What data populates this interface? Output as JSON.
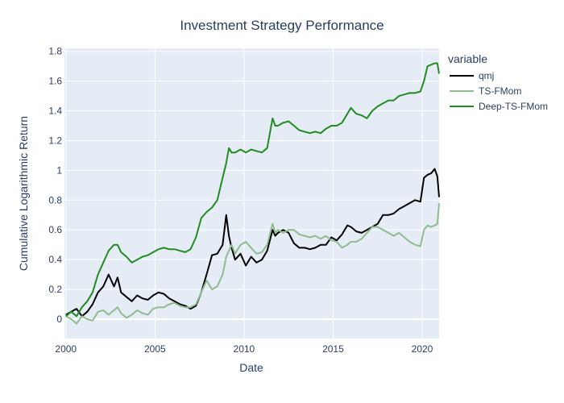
{
  "chart_data": {
    "type": "line",
    "title": "Investment Strategy Performance",
    "xlabel": "Date",
    "ylabel": "Cumulative Logarithmic Return",
    "xlim": [
      1999.92,
      2020.95
    ],
    "ylim": [
      -0.13,
      1.82
    ],
    "xticks": [
      2000,
      2005,
      2010,
      2015,
      2020
    ],
    "xtick_labels": [
      "2000",
      "2005",
      "2010",
      "2015",
      "2020"
    ],
    "yticks": [
      0,
      0.2,
      0.4,
      0.6,
      0.8,
      1,
      1.2,
      1.4,
      1.6,
      1.8
    ],
    "ytick_labels": [
      "0",
      "0.2",
      "0.4",
      "0.6",
      "0.8",
      "1",
      "1.2",
      "1.4",
      "1.6",
      "1.8"
    ],
    "grid": true,
    "legend": {
      "title": "variable",
      "placement": "right"
    },
    "colors": {
      "plot_bg": "#e5ecf6",
      "grid": "#ffffff",
      "text": "#2a3f5f"
    },
    "series": [
      {
        "name": "qmj",
        "color": "#000000",
        "x": [
          2000.0,
          2000.3,
          2000.6,
          2000.9,
          2001.2,
          2001.5,
          2001.8,
          2002.1,
          2002.4,
          2002.7,
          2002.9,
          2003.1,
          2003.4,
          2003.7,
          2004.0,
          2004.3,
          2004.6,
          2004.9,
          2005.2,
          2005.5,
          2005.8,
          2006.1,
          2006.4,
          2006.7,
          2007.0,
          2007.3,
          2007.6,
          2007.9,
          2008.2,
          2008.5,
          2008.8,
          2009.0,
          2009.15,
          2009.3,
          2009.5,
          2009.8,
          2010.1,
          2010.4,
          2010.7,
          2011.0,
          2011.3,
          2011.6,
          2011.75,
          2011.9,
          2012.2,
          2012.5,
          2012.8,
          2013.1,
          2013.4,
          2013.7,
          2014.0,
          2014.3,
          2014.6,
          2014.9,
          2015.2,
          2015.5,
          2015.8,
          2016.0,
          2016.3,
          2016.6,
          2016.9,
          2017.2,
          2017.5,
          2017.8,
          2018.1,
          2018.4,
          2018.7,
          2019.0,
          2019.3,
          2019.6,
          2019.9,
          2020.1,
          2020.3,
          2020.5,
          2020.7,
          2020.85,
          2020.95
        ],
        "values": [
          0.03,
          0.05,
          0.07,
          0.02,
          0.05,
          0.1,
          0.18,
          0.22,
          0.3,
          0.22,
          0.28,
          0.18,
          0.15,
          0.12,
          0.16,
          0.14,
          0.13,
          0.16,
          0.18,
          0.17,
          0.14,
          0.12,
          0.1,
          0.09,
          0.07,
          0.09,
          0.18,
          0.3,
          0.43,
          0.44,
          0.5,
          0.7,
          0.56,
          0.48,
          0.4,
          0.44,
          0.36,
          0.42,
          0.38,
          0.4,
          0.46,
          0.6,
          0.56,
          0.58,
          0.6,
          0.58,
          0.51,
          0.48,
          0.48,
          0.47,
          0.48,
          0.5,
          0.5,
          0.55,
          0.53,
          0.57,
          0.63,
          0.62,
          0.59,
          0.58,
          0.6,
          0.62,
          0.64,
          0.7,
          0.7,
          0.71,
          0.74,
          0.76,
          0.78,
          0.8,
          0.79,
          0.95,
          0.97,
          0.98,
          1.01,
          0.96,
          0.82
        ]
      },
      {
        "name": "TS-FMom",
        "color": "#8fbc8f",
        "x": [
          2000.0,
          2000.3,
          2000.6,
          2000.9,
          2001.2,
          2001.5,
          2001.8,
          2002.1,
          2002.4,
          2002.7,
          2002.9,
          2003.1,
          2003.4,
          2003.7,
          2004.0,
          2004.3,
          2004.6,
          2004.9,
          2005.2,
          2005.5,
          2005.8,
          2006.1,
          2006.4,
          2006.7,
          2007.0,
          2007.3,
          2007.6,
          2007.9,
          2008.2,
          2008.5,
          2008.8,
          2009.0,
          2009.15,
          2009.3,
          2009.5,
          2009.8,
          2010.1,
          2010.4,
          2010.7,
          2011.0,
          2011.3,
          2011.6,
          2011.75,
          2011.9,
          2012.2,
          2012.5,
          2012.8,
          2013.1,
          2013.4,
          2013.7,
          2014.0,
          2014.3,
          2014.6,
          2014.9,
          2015.2,
          2015.5,
          2015.8,
          2016.0,
          2016.3,
          2016.6,
          2016.9,
          2017.2,
          2017.5,
          2017.8,
          2018.1,
          2018.4,
          2018.7,
          2019.0,
          2019.3,
          2019.6,
          2019.9,
          2020.1,
          2020.3,
          2020.5,
          2020.7,
          2020.85,
          2020.95
        ],
        "values": [
          0.02,
          0.0,
          -0.03,
          0.02,
          0.0,
          -0.01,
          0.05,
          0.06,
          0.03,
          0.06,
          0.08,
          0.04,
          0.01,
          0.03,
          0.06,
          0.04,
          0.03,
          0.07,
          0.08,
          0.08,
          0.1,
          0.11,
          0.09,
          0.08,
          0.08,
          0.1,
          0.18,
          0.26,
          0.2,
          0.22,
          0.3,
          0.42,
          0.46,
          0.5,
          0.44,
          0.5,
          0.52,
          0.48,
          0.44,
          0.45,
          0.5,
          0.64,
          0.58,
          0.6,
          0.58,
          0.6,
          0.6,
          0.57,
          0.56,
          0.55,
          0.56,
          0.54,
          0.56,
          0.53,
          0.52,
          0.48,
          0.5,
          0.52,
          0.52,
          0.54,
          0.58,
          0.62,
          0.62,
          0.6,
          0.58,
          0.56,
          0.58,
          0.55,
          0.52,
          0.5,
          0.49,
          0.6,
          0.63,
          0.62,
          0.63,
          0.64,
          0.78
        ]
      },
      {
        "name": "Deep-TS-FMom",
        "color": "#228b22",
        "x": [
          2000.0,
          2000.3,
          2000.6,
          2000.9,
          2001.2,
          2001.5,
          2001.8,
          2002.1,
          2002.4,
          2002.7,
          2002.9,
          2003.1,
          2003.4,
          2003.7,
          2004.0,
          2004.3,
          2004.6,
          2004.9,
          2005.2,
          2005.5,
          2005.8,
          2006.1,
          2006.4,
          2006.7,
          2007.0,
          2007.3,
          2007.6,
          2007.9,
          2008.2,
          2008.5,
          2008.8,
          2009.0,
          2009.15,
          2009.3,
          2009.5,
          2009.8,
          2010.1,
          2010.4,
          2010.7,
          2011.0,
          2011.3,
          2011.6,
          2011.75,
          2011.9,
          2012.2,
          2012.5,
          2012.8,
          2013.1,
          2013.4,
          2013.7,
          2014.0,
          2014.3,
          2014.6,
          2014.9,
          2015.2,
          2015.5,
          2015.8,
          2016.0,
          2016.3,
          2016.6,
          2016.9,
          2017.2,
          2017.5,
          2017.8,
          2018.1,
          2018.4,
          2018.7,
          2019.0,
          2019.3,
          2019.6,
          2019.9,
          2020.1,
          2020.3,
          2020.5,
          2020.7,
          2020.85,
          2020.95
        ],
        "values": [
          0.02,
          0.05,
          0.02,
          0.08,
          0.12,
          0.18,
          0.3,
          0.38,
          0.46,
          0.5,
          0.5,
          0.45,
          0.42,
          0.38,
          0.4,
          0.42,
          0.43,
          0.45,
          0.47,
          0.48,
          0.47,
          0.47,
          0.46,
          0.45,
          0.47,
          0.55,
          0.68,
          0.72,
          0.75,
          0.8,
          0.95,
          1.05,
          1.15,
          1.12,
          1.12,
          1.14,
          1.12,
          1.14,
          1.13,
          1.12,
          1.15,
          1.35,
          1.3,
          1.3,
          1.32,
          1.33,
          1.3,
          1.27,
          1.26,
          1.25,
          1.26,
          1.25,
          1.28,
          1.3,
          1.3,
          1.32,
          1.38,
          1.42,
          1.38,
          1.37,
          1.35,
          1.4,
          1.43,
          1.45,
          1.47,
          1.47,
          1.5,
          1.51,
          1.52,
          1.52,
          1.53,
          1.6,
          1.7,
          1.71,
          1.72,
          1.72,
          1.65
        ]
      }
    ]
  }
}
